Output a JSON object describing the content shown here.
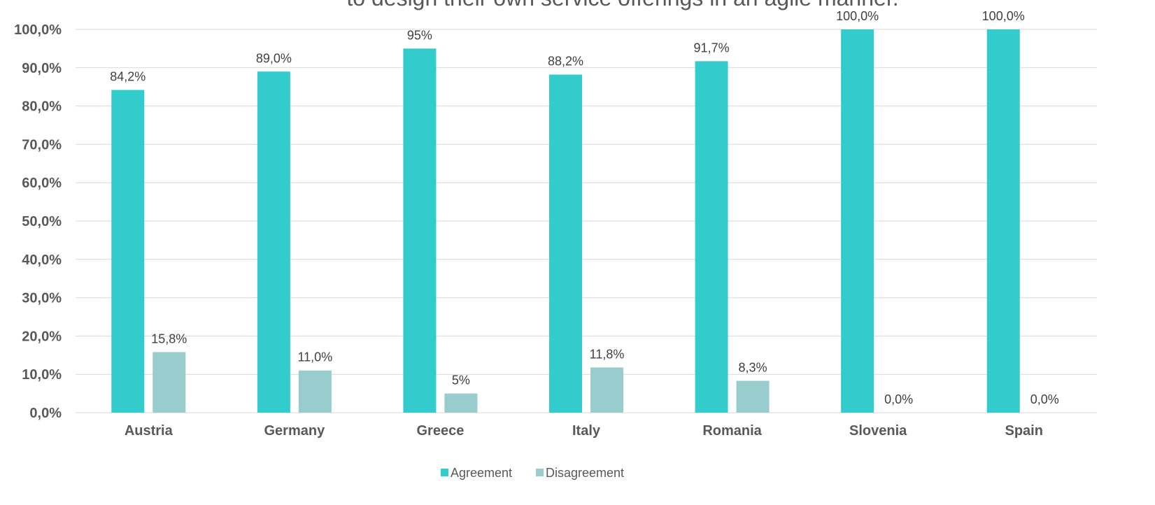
{
  "chart_data": {
    "type": "bar",
    "title": "to design their own service offerings in an agile manner.",
    "categories": [
      "Austria",
      "Germany",
      "Greece",
      "Italy",
      "Romania",
      "Slovenia",
      "Spain"
    ],
    "series": [
      {
        "name": "Agreement",
        "color": "#33cccc",
        "values": [
          84.2,
          89.0,
          95,
          88.2,
          91.7,
          100.0,
          100.0
        ],
        "labels": [
          "84,2%",
          "89,0%",
          "95%",
          "88,2%",
          "91,7%",
          "100,0%",
          "100,0%"
        ]
      },
      {
        "name": "Disagreement",
        "color": "#99cccc",
        "values": [
          15.8,
          11.0,
          5,
          11.8,
          8.3,
          0.0,
          0.0
        ],
        "labels": [
          "15,8%",
          "11,0%",
          "5%",
          "11,8%",
          "8,3%",
          "0,0%",
          "0,0%"
        ]
      }
    ],
    "yticks": [
      "0,0%",
      "10,0%",
      "20,0%",
      "30,0%",
      "40,0%",
      "50,0%",
      "60,0%",
      "70,0%",
      "80,0%",
      "90,0%",
      "100,0%"
    ],
    "ylim": [
      0,
      100
    ],
    "grid": true,
    "legend_position": "bottom-center"
  }
}
